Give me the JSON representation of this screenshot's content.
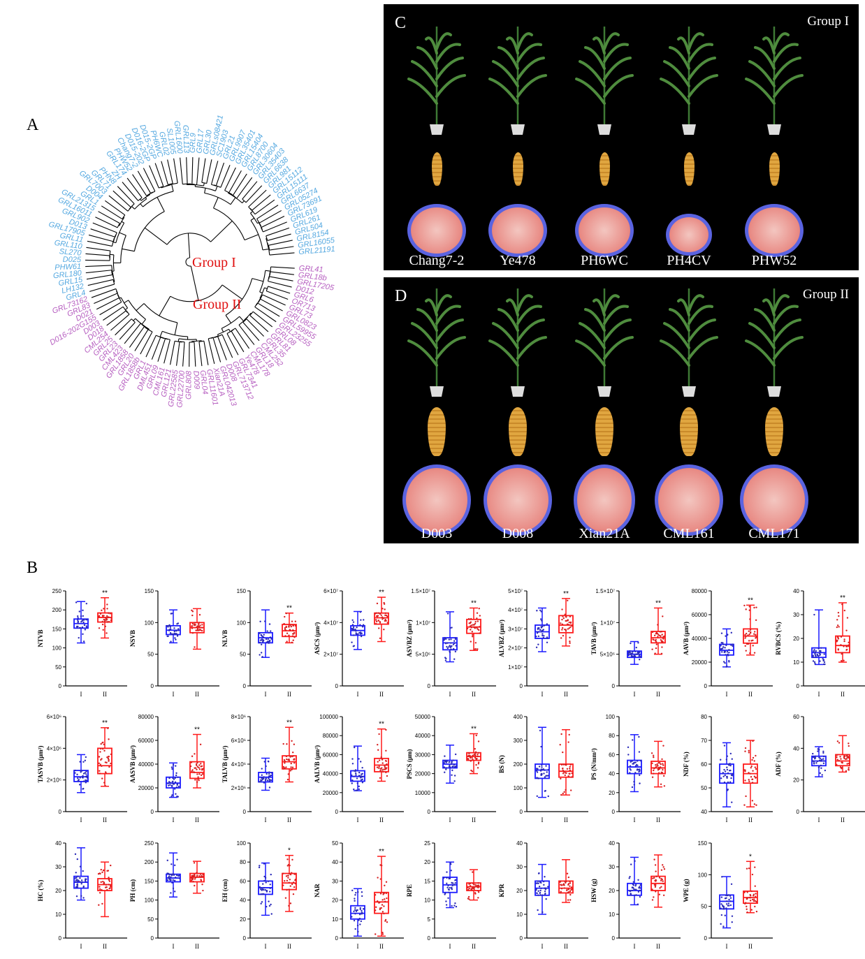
{
  "panels": {
    "A": "A",
    "B": "B",
    "C": "C",
    "D": "D"
  },
  "tree": {
    "group1_label": "Group I",
    "group2_label": "Group II",
    "group1_color": "#54a8e0",
    "group2_color": "#b65ec0",
    "label_color": "#e01010",
    "group1_leaves": [
      "GRL21191",
      "GRL16055",
      "GRL8154",
      "GRL504",
      "GRL261",
      "GRL619",
      "GRL73691",
      "GRL05274",
      "GRL6637",
      "GRL15111",
      "GRL15112",
      "GRL981",
      "GRL6638",
      "GRL35403",
      "GRL30604",
      "GRL8700",
      "GRL15404",
      "GRL35401",
      "GRL9907",
      "GRL21",
      "SC1903",
      "GRLs08421",
      "GRL30",
      "GRL17",
      "GRL9",
      "GRL113",
      "GRL1600",
      "SL1005",
      "GRL02",
      "PH6WC",
      "D015-2GP",
      "D016-2GP",
      "D015-202",
      "Chang7-2",
      "PHW52",
      "GRL174",
      "ZH",
      "PHN8",
      "GRL71",
      "GRL7003",
      "D004",
      "GRL1",
      "GRL21315",
      "GRL16011",
      "GRL902",
      "D013",
      "GRL17905",
      "GRL11",
      "GRL110",
      "SL270",
      "D025",
      "PHW61",
      "GRL180",
      "GRL15",
      "LH132",
      "GRL4"
    ],
    "group2_leaves": [
      "GRL73162",
      "GRL83",
      "D021",
      "D016-202G155",
      "D003",
      "D018",
      "CML254",
      "GRL25",
      "GRL23",
      "CML423",
      "GRL1858",
      "GRL20",
      "GRL1858b",
      "GRL1",
      "DML451",
      "GRL09",
      "CML161",
      "GRL121",
      "GRL22585",
      "GRL22700",
      "GRL808",
      "D009",
      "GRL04",
      "GRL11601",
      "Xian21A",
      "GRL042013",
      "D008",
      "GRL713712",
      "GRL7341",
      "Ye478",
      "CML178",
      "GRL18",
      "CML252",
      "GRL35",
      "GRL81",
      "GRL08",
      "GRL23255",
      "GRL59955",
      "GRL0823",
      "GRL73",
      "OR713",
      "GRL6",
      "D012",
      "GRL17205",
      "GRL18b",
      "GRL41"
    ]
  },
  "photos": {
    "C": {
      "group": "Group I",
      "lines": [
        "Chang7-2",
        "Ye478",
        "PH6WC",
        "PH4CV",
        "PHW52"
      ]
    },
    "D": {
      "group": "Group II",
      "lines": [
        "D003",
        "D008",
        "Xian21A",
        "CML161",
        "CML171"
      ]
    }
  },
  "colors": {
    "g1": "#1a1aff",
    "g2": "#ff1a1a",
    "dot1": "#2a2ab8",
    "dot2": "#d82020"
  },
  "chart_data": [
    {
      "type": "box",
      "ylabel": "NTVB",
      "yticks": [
        "0",
        "50",
        "100",
        "150",
        "200",
        "250"
      ],
      "ylim": [
        0,
        250
      ],
      "categories": [
        "I",
        "II"
      ],
      "groups": [
        {
          "min": 113,
          "q1": 152,
          "median": 164,
          "q3": 176,
          "max": 222
        },
        {
          "min": 126,
          "q1": 168,
          "median": 180,
          "q3": 192,
          "max": 232
        }
      ],
      "sig": "**"
    },
    {
      "type": "box",
      "ylabel": "NSVB",
      "yticks": [
        "0",
        "50",
        "100",
        "150"
      ],
      "ylim": [
        0,
        150
      ],
      "categories": [
        "I",
        "II"
      ],
      "groups": [
        {
          "min": 68,
          "q1": 81,
          "median": 88,
          "q3": 95,
          "max": 120
        },
        {
          "min": 58,
          "q1": 84,
          "median": 92,
          "q3": 100,
          "max": 122
        }
      ],
      "sig": ""
    },
    {
      "type": "box",
      "ylabel": "NLVB",
      "yticks": [
        "0",
        "50",
        "100",
        "150"
      ],
      "ylim": [
        0,
        150
      ],
      "categories": [
        "I",
        "II"
      ],
      "groups": [
        {
          "min": 45,
          "q1": 68,
          "median": 76,
          "q3": 84,
          "max": 120
        },
        {
          "min": 68,
          "q1": 78,
          "median": 87,
          "q3": 97,
          "max": 115
        }
      ],
      "sig": "**"
    },
    {
      "type": "box",
      "ylabel": "ASCS (μm²)",
      "yticks": [
        "0",
        "2×10⁷",
        "4×10⁷",
        "6×10⁷"
      ],
      "ylim": [
        0,
        60000000
      ],
      "categories": [
        "I",
        "II"
      ],
      "groups": [
        {
          "min": 23000000,
          "q1": 32000000,
          "median": 35000000,
          "q3": 38000000,
          "max": 47000000
        },
        {
          "min": 28000000,
          "q1": 39000000,
          "median": 43000000,
          "q3": 46000000,
          "max": 56000000
        }
      ],
      "sig": "**"
    },
    {
      "type": "box",
      "ylabel": "ASVBZ (μm²)",
      "yticks": [
        "0",
        "5×10⁶",
        "1×10⁷",
        "1.5×10⁷"
      ],
      "ylim": [
        0,
        15000000
      ],
      "categories": [
        "I",
        "II"
      ],
      "groups": [
        {
          "min": 3800000,
          "q1": 5700000,
          "median": 6800000,
          "q3": 7600000,
          "max": 11700000
        },
        {
          "min": 5600000,
          "q1": 8300000,
          "median": 9300000,
          "q3": 10500000,
          "max": 12300000
        }
      ],
      "sig": "**"
    },
    {
      "type": "box",
      "ylabel": "ALVBZ (μm²)",
      "yticks": [
        "0",
        "1×10⁷",
        "2×10⁷",
        "3×10⁷",
        "4×10⁷",
        "5×10⁷"
      ],
      "ylim": [
        0,
        50000000
      ],
      "categories": [
        "I",
        "II"
      ],
      "groups": [
        {
          "min": 18000000,
          "q1": 25000000,
          "median": 28500000,
          "q3": 32000000,
          "max": 41000000
        },
        {
          "min": 21000000,
          "q1": 28000000,
          "median": 32000000,
          "q3": 37000000,
          "max": 46000000
        }
      ],
      "sig": "**"
    },
    {
      "type": "box",
      "ylabel": "TAVB (μm²)",
      "yticks": [
        "0",
        "5×10⁶",
        "1×10⁷",
        "1.5×10⁷"
      ],
      "ylim": [
        0,
        15000000
      ],
      "categories": [
        "I",
        "II"
      ],
      "groups": [
        {
          "min": 3400000,
          "q1": 4500000,
          "median": 5000000,
          "q3": 5500000,
          "max": 7000000
        },
        {
          "min": 5000000,
          "q1": 6800000,
          "median": 7600000,
          "q3": 8600000,
          "max": 12300000
        }
      ],
      "sig": "**"
    },
    {
      "type": "box",
      "ylabel": "AAVB (μm²)",
      "yticks": [
        "0",
        "20000",
        "40000",
        "60000",
        "80000"
      ],
      "ylim": [
        0,
        80000
      ],
      "categories": [
        "I",
        "II"
      ],
      "groups": [
        {
          "min": 16000,
          "q1": 26000,
          "median": 30000,
          "q3": 35000,
          "max": 48000
        },
        {
          "min": 26000,
          "q1": 36000,
          "median": 42000,
          "q3": 48000,
          "max": 68000
        }
      ],
      "sig": "**"
    },
    {
      "type": "box",
      "ylabel": "RVBCS (%)",
      "yticks": [
        "0",
        "10",
        "20",
        "30",
        "40"
      ],
      "ylim": [
        0,
        40
      ],
      "categories": [
        "I",
        "II"
      ],
      "groups": [
        {
          "min": 9,
          "q1": 12,
          "median": 14,
          "q3": 16,
          "max": 32
        },
        {
          "min": 10,
          "q1": 14,
          "median": 17,
          "q3": 21,
          "max": 35
        }
      ],
      "sig": "**"
    },
    {
      "type": "box",
      "ylabel": "TASVB (μm²)",
      "yticks": [
        "0",
        "2×10⁶",
        "4×10⁶",
        "6×10⁶"
      ],
      "ylim": [
        0,
        6000000
      ],
      "categories": [
        "I",
        "II"
      ],
      "groups": [
        {
          "min": 1200000,
          "q1": 1900000,
          "median": 2200000,
          "q3": 2600000,
          "max": 3600000
        },
        {
          "min": 1600000,
          "q1": 2400000,
          "median": 2900000,
          "q3": 4000000,
          "max": 5300000
        }
      ],
      "sig": "**"
    },
    {
      "type": "box",
      "ylabel": "AASVB (μm²)",
      "yticks": [
        "0",
        "20000",
        "40000",
        "60000",
        "80000"
      ],
      "ylim": [
        0,
        80000
      ],
      "categories": [
        "I",
        "II"
      ],
      "groups": [
        {
          "min": 12000,
          "q1": 20000,
          "median": 24000,
          "q3": 29000,
          "max": 41000
        },
        {
          "min": 20000,
          "q1": 28000,
          "median": 33000,
          "q3": 42000,
          "max": 65000
        }
      ],
      "sig": "**"
    },
    {
      "type": "box",
      "ylabel": "TALVB (μm²)",
      "yticks": [
        "0",
        "2×10⁶",
        "4×10⁶",
        "6×10⁶",
        "8×10⁶"
      ],
      "ylim": [
        0,
        8000000
      ],
      "categories": [
        "I",
        "II"
      ],
      "groups": [
        {
          "min": 1800000,
          "q1": 2500000,
          "median": 2900000,
          "q3": 3300000,
          "max": 4500000
        },
        {
          "min": 2500000,
          "q1": 3600000,
          "median": 4200000,
          "q3": 4700000,
          "max": 7100000
        }
      ],
      "sig": "**"
    },
    {
      "type": "box",
      "ylabel": "AALVB (μm²)",
      "yticks": [
        "0",
        "20000",
        "40000",
        "60000",
        "80000",
        "100000"
      ],
      "ylim": [
        0,
        100000
      ],
      "categories": [
        "I",
        "II"
      ],
      "groups": [
        {
          "min": 22000,
          "q1": 32000,
          "median": 37000,
          "q3": 43000,
          "max": 69000
        },
        {
          "min": 32000,
          "q1": 42000,
          "median": 49000,
          "q3": 56000,
          "max": 87000
        }
      ],
      "sig": "**"
    },
    {
      "type": "box",
      "ylabel": "PSCS (μm)",
      "yticks": [
        "0",
        "10000",
        "20000",
        "30000",
        "40000",
        "50000"
      ],
      "ylim": [
        0,
        50000
      ],
      "categories": [
        "I",
        "II"
      ],
      "groups": [
        {
          "min": 15000,
          "q1": 23000,
          "median": 25000,
          "q3": 27000,
          "max": 35000
        },
        {
          "min": 20000,
          "q1": 27000,
          "median": 29000,
          "q3": 31000,
          "max": 41000
        }
      ],
      "sig": "**"
    },
    {
      "type": "box",
      "ylabel": "BS (N)",
      "yticks": [
        "0",
        "100",
        "200",
        "300",
        "400"
      ],
      "ylim": [
        0,
        400
      ],
      "categories": [
        "I",
        "II"
      ],
      "groups": [
        {
          "min": 60,
          "q1": 140,
          "median": 175,
          "q3": 200,
          "max": 355
        },
        {
          "min": 70,
          "q1": 145,
          "median": 170,
          "q3": 200,
          "max": 345
        }
      ],
      "sig": ""
    },
    {
      "type": "box",
      "ylabel": "PS (N/mm²)",
      "yticks": [
        "0",
        "20",
        "40",
        "60",
        "80",
        "100"
      ],
      "ylim": [
        0,
        100
      ],
      "categories": [
        "I",
        "II"
      ],
      "groups": [
        {
          "min": 21,
          "q1": 40,
          "median": 47,
          "q3": 54,
          "max": 81
        },
        {
          "min": 26,
          "q1": 40,
          "median": 46,
          "q3": 53,
          "max": 74
        }
      ],
      "sig": ""
    },
    {
      "type": "box",
      "ylabel": "NDF (%)",
      "yticks": [
        "40",
        "50",
        "60",
        "70",
        "80"
      ],
      "ylim": [
        40,
        80
      ],
      "categories": [
        "I",
        "II"
      ],
      "groups": [
        {
          "min": 42,
          "q1": 52,
          "median": 56,
          "q3": 60,
          "max": 69
        },
        {
          "min": 42,
          "q1": 52,
          "median": 56,
          "q3": 60,
          "max": 70
        }
      ],
      "sig": ""
    },
    {
      "type": "box",
      "ylabel": "ADF (%)",
      "yticks": [
        "0",
        "20",
        "40",
        "60"
      ],
      "ylim": [
        0,
        60
      ],
      "categories": [
        "I",
        "II"
      ],
      "groups": [
        {
          "min": 22,
          "q1": 29,
          "median": 32,
          "q3": 35,
          "max": 41
        },
        {
          "min": 25,
          "q1": 29,
          "median": 32,
          "q3": 36,
          "max": 48
        }
      ],
      "sig": ""
    },
    {
      "type": "box",
      "ylabel": "HC (%)",
      "yticks": [
        "0",
        "10",
        "20",
        "30",
        "40"
      ],
      "ylim": [
        0,
        40
      ],
      "categories": [
        "I",
        "II"
      ],
      "groups": [
        {
          "min": 16,
          "q1": 21,
          "median": 23.5,
          "q3": 26,
          "max": 38
        },
        {
          "min": 9,
          "q1": 20,
          "median": 22.5,
          "q3": 25,
          "max": 32
        }
      ],
      "sig": ""
    },
    {
      "type": "box",
      "ylabel": "PH (cm)",
      "yticks": [
        "0",
        "50",
        "100",
        "150",
        "200",
        "250"
      ],
      "ylim": [
        0,
        250
      ],
      "categories": [
        "I",
        "II"
      ],
      "groups": [
        {
          "min": 108,
          "q1": 148,
          "median": 158,
          "q3": 168,
          "max": 224
        },
        {
          "min": 118,
          "q1": 148,
          "median": 160,
          "q3": 170,
          "max": 202
        }
      ],
      "sig": ""
    },
    {
      "type": "box",
      "ylabel": "EH (cm)",
      "yticks": [
        "0",
        "20",
        "40",
        "60",
        "80",
        "100"
      ],
      "ylim": [
        0,
        100
      ],
      "categories": [
        "I",
        "II"
      ],
      "groups": [
        {
          "min": 24,
          "q1": 46,
          "median": 53,
          "q3": 60,
          "max": 79
        },
        {
          "min": 28,
          "q1": 51,
          "median": 58,
          "q3": 68,
          "max": 87
        }
      ],
      "sig": "*"
    },
    {
      "type": "box",
      "ylabel": "NAR",
      "yticks": [
        "0",
        "10",
        "20",
        "30",
        "40",
        "50"
      ],
      "ylim": [
        0,
        50
      ],
      "categories": [
        "I",
        "II"
      ],
      "groups": [
        {
          "min": 1,
          "q1": 10,
          "median": 13,
          "q3": 17,
          "max": 26
        },
        {
          "min": 1,
          "q1": 13,
          "median": 19,
          "q3": 24,
          "max": 43
        }
      ],
      "sig": "**"
    },
    {
      "type": "box",
      "ylabel": "RPE",
      "yticks": [
        "0",
        "5",
        "10",
        "15",
        "20",
        "25"
      ],
      "ylim": [
        0,
        25
      ],
      "categories": [
        "I",
        "II"
      ],
      "groups": [
        {
          "min": 8,
          "q1": 12,
          "median": 14,
          "q3": 16,
          "max": 20
        },
        {
          "min": 10,
          "q1": 12.5,
          "median": 13.5,
          "q3": 14.5,
          "max": 18
        }
      ],
      "sig": ""
    },
    {
      "type": "box",
      "ylabel": "KPR",
      "yticks": [
        "0",
        "10",
        "20",
        "30",
        "40"
      ],
      "ylim": [
        0,
        40
      ],
      "categories": [
        "I",
        "II"
      ],
      "groups": [
        {
          "min": 10,
          "q1": 18,
          "median": 21,
          "q3": 24,
          "max": 31
        },
        {
          "min": 15,
          "q1": 19,
          "median": 21,
          "q3": 24,
          "max": 33
        }
      ],
      "sig": ""
    },
    {
      "type": "box",
      "ylabel": "HSW (g)",
      "yticks": [
        "0",
        "10",
        "20",
        "30",
        "40"
      ],
      "ylim": [
        0,
        40
      ],
      "categories": [
        "I",
        "II"
      ],
      "groups": [
        {
          "min": 14,
          "q1": 18,
          "median": 20,
          "q3": 23,
          "max": 34
        },
        {
          "min": 13,
          "q1": 20,
          "median": 23,
          "q3": 26,
          "max": 35
        }
      ],
      "sig": ""
    },
    {
      "type": "box",
      "ylabel": "WPE (g)",
      "yticks": [
        "0",
        "50",
        "100",
        "150"
      ],
      "ylim": [
        0,
        150
      ],
      "categories": [
        "I",
        "II"
      ],
      "groups": [
        {
          "min": 16,
          "q1": 46,
          "median": 58,
          "q3": 68,
          "max": 97
        },
        {
          "min": 40,
          "q1": 55,
          "median": 64,
          "q3": 74,
          "max": 121
        }
      ],
      "sig": "*"
    }
  ]
}
